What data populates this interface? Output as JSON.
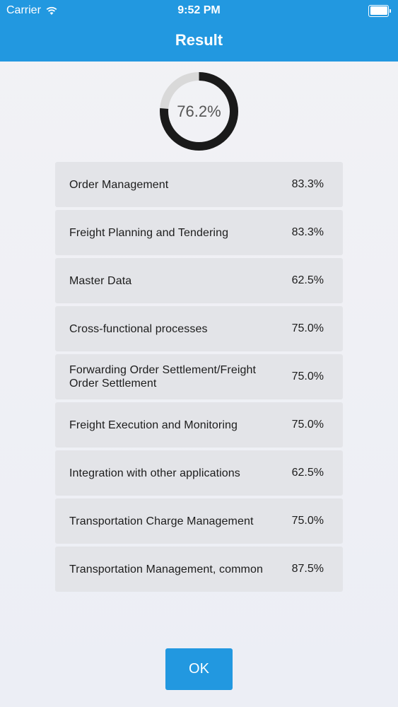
{
  "status_bar": {
    "carrier": "Carrier",
    "time": "9:52 PM"
  },
  "header": {
    "title": "Result"
  },
  "overall": {
    "label": "76.2%",
    "fraction": 0.762
  },
  "results": [
    {
      "name": "Order Management",
      "score": "83.3%"
    },
    {
      "name": "Freight Planning and Tendering",
      "score": "83.3%"
    },
    {
      "name": "Master Data",
      "score": "62.5%"
    },
    {
      "name": "Cross-functional processes",
      "score": "75.0%"
    },
    {
      "name": "Forwarding Order Settlement/Freight Order Settlement",
      "score": "75.0%"
    },
    {
      "name": "Freight Execution and Monitoring",
      "score": "75.0%"
    },
    {
      "name": "Integration with other applications",
      "score": "62.5%"
    },
    {
      "name": "Transportation Charge Management",
      "score": "75.0%"
    },
    {
      "name": "Transportation Management, common",
      "score": "87.5%"
    }
  ],
  "ok_button": {
    "label": "OK"
  },
  "colors": {
    "accent": "#2298e0",
    "ring_fill": "#1a1a1a",
    "ring_track": "#d9d9d9"
  }
}
